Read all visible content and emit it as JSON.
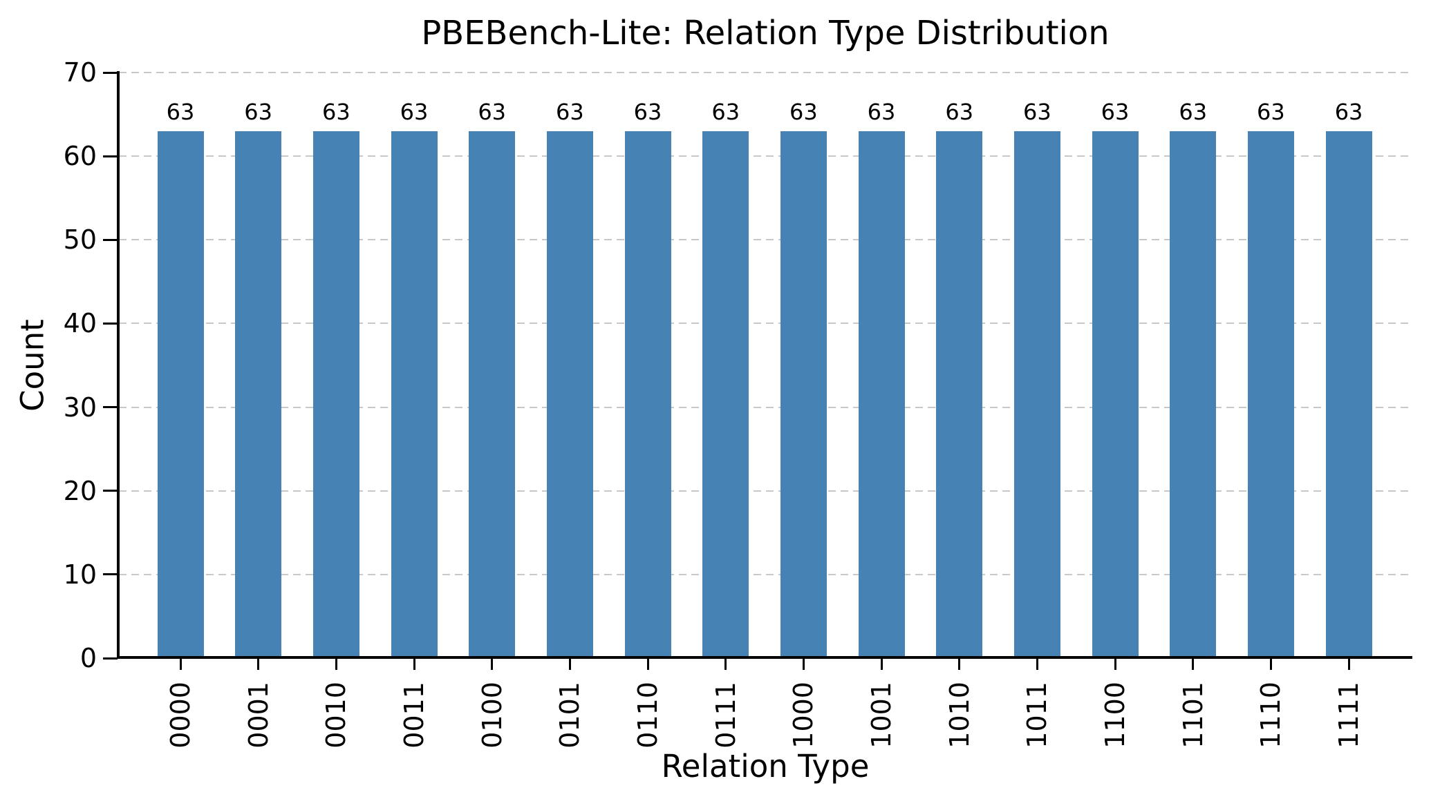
{
  "chart_data": {
    "type": "bar",
    "title": "PBEBench-Lite: Relation Type Distribution",
    "xlabel": "Relation Type",
    "ylabel": "Count",
    "categories": [
      "0000",
      "0001",
      "0010",
      "0011",
      "0100",
      "0101",
      "0110",
      "0111",
      "1000",
      "1001",
      "1010",
      "1011",
      "1100",
      "1101",
      "1110",
      "1111"
    ],
    "values": [
      63,
      63,
      63,
      63,
      63,
      63,
      63,
      63,
      63,
      63,
      63,
      63,
      63,
      63,
      63,
      63
    ],
    "ylim": [
      0,
      70
    ],
    "yticks": [
      0,
      10,
      20,
      30,
      40,
      50,
      60,
      70
    ],
    "x_tick_rotation": 90,
    "bar_value_labels": true,
    "legend": "none",
    "grid": "horizontal-dashed",
    "bar_color": "#4682b4",
    "grid_color": "#c8c8c8",
    "axis_color": "#000000"
  }
}
